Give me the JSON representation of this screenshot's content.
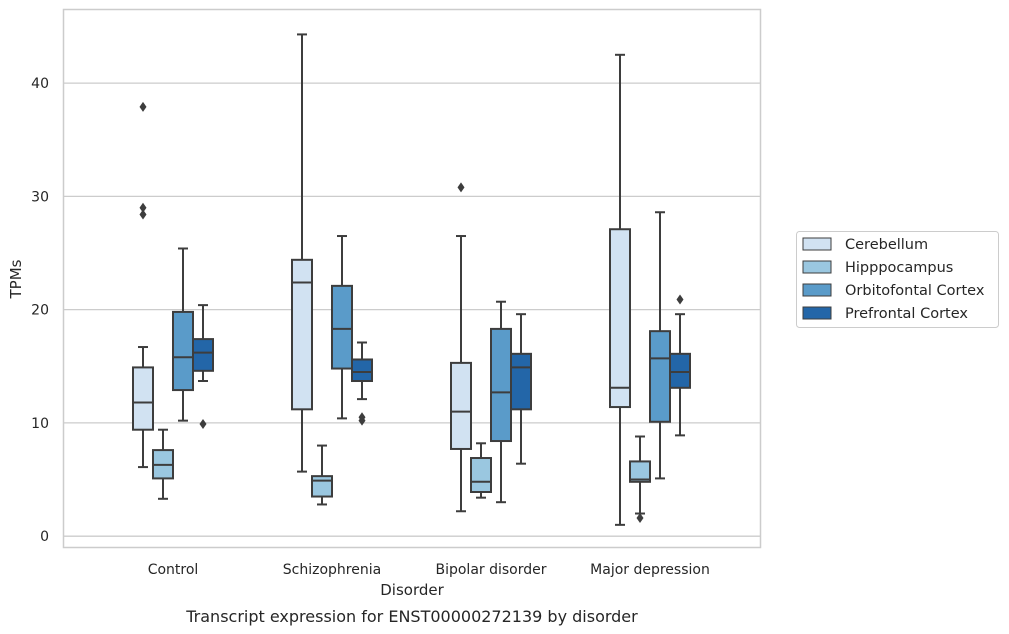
{
  "chart_data": {
    "type": "box",
    "caption": "Transcript expression for ENST00000272139 by disorder",
    "xlabel": "Disorder",
    "ylabel": "TPMs",
    "ylim": [
      -1,
      46.5
    ],
    "yticks": [
      0,
      10,
      20,
      30,
      40
    ],
    "grid": "horizontal",
    "legend_position": "right-center",
    "categories": [
      "Control",
      "Schizophrenia",
      "Bipolar disorder",
      "Major depression"
    ],
    "series": [
      {
        "name": "Cerebellum",
        "color": "#d1e2f2",
        "boxes": [
          {
            "whislo": 6.1,
            "q1": 9.4,
            "med": 11.8,
            "q3": 14.9,
            "whishi": 16.7,
            "fliers": [
              28.4,
              29.0,
              37.9
            ]
          },
          {
            "whislo": 5.7,
            "q1": 11.2,
            "med": 22.4,
            "q3": 24.4,
            "whishi": 44.3,
            "fliers": []
          },
          {
            "whislo": 2.2,
            "q1": 7.7,
            "med": 11.0,
            "q3": 15.3,
            "whishi": 26.5,
            "fliers": [
              30.8
            ]
          },
          {
            "whislo": 1.0,
            "q1": 11.4,
            "med": 13.1,
            "q3": 27.1,
            "whishi": 42.5,
            "fliers": []
          }
        ]
      },
      {
        "name": "Hipppocampus",
        "color": "#9ac7e0",
        "boxes": [
          {
            "whislo": 3.3,
            "q1": 5.1,
            "med": 6.3,
            "q3": 7.6,
            "whishi": 9.4,
            "fliers": []
          },
          {
            "whislo": 2.8,
            "q1": 3.5,
            "med": 4.9,
            "q3": 5.3,
            "whishi": 8.0,
            "fliers": []
          },
          {
            "whislo": 3.4,
            "q1": 3.9,
            "med": 4.8,
            "q3": 6.9,
            "whishi": 8.2,
            "fliers": []
          },
          {
            "whislo": 2.0,
            "q1": 4.8,
            "med": 5.0,
            "q3": 6.6,
            "whishi": 8.8,
            "fliers": [
              1.6
            ]
          }
        ]
      },
      {
        "name": "Orbitofontal Cortex",
        "color": "#5a9bc9",
        "boxes": [
          {
            "whislo": 10.2,
            "q1": 12.9,
            "med": 15.8,
            "q3": 19.8,
            "whishi": 25.4,
            "fliers": []
          },
          {
            "whislo": 10.4,
            "q1": 14.8,
            "med": 18.3,
            "q3": 22.1,
            "whishi": 26.5,
            "fliers": []
          },
          {
            "whislo": 3.0,
            "q1": 8.4,
            "med": 12.7,
            "q3": 18.3,
            "whishi": 20.7,
            "fliers": []
          },
          {
            "whislo": 5.1,
            "q1": 10.1,
            "med": 15.7,
            "q3": 18.1,
            "whishi": 28.6,
            "fliers": []
          }
        ]
      },
      {
        "name": "Prefrontal Cortex",
        "color": "#2366a8",
        "boxes": [
          {
            "whislo": 13.7,
            "q1": 14.6,
            "med": 16.2,
            "q3": 17.4,
            "whishi": 20.4,
            "fliers": [
              9.9
            ]
          },
          {
            "whislo": 12.1,
            "q1": 13.7,
            "med": 14.5,
            "q3": 15.6,
            "whishi": 17.1,
            "fliers": [
              10.2,
              10.5
            ]
          },
          {
            "whislo": 6.4,
            "q1": 11.2,
            "med": 14.9,
            "q3": 16.1,
            "whishi": 19.6,
            "fliers": []
          },
          {
            "whislo": 8.9,
            "q1": 13.1,
            "med": 14.5,
            "q3": 16.1,
            "whishi": 19.6,
            "fliers": [
              20.9
            ]
          }
        ]
      }
    ]
  }
}
